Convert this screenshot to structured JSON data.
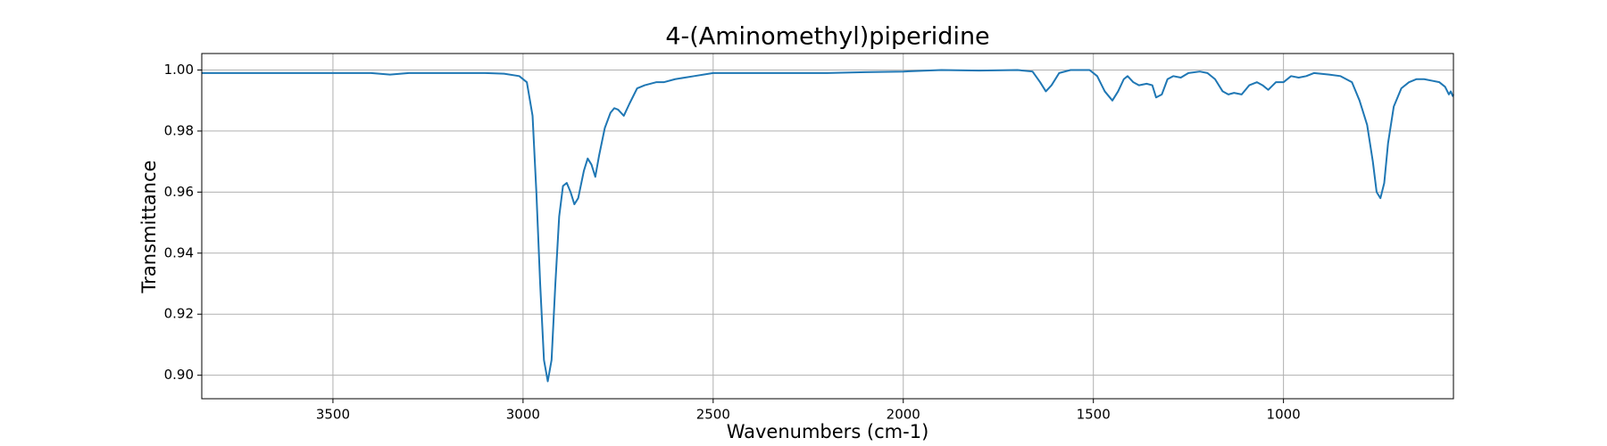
{
  "chart_data": {
    "type": "line",
    "title": "4-(Aminomethyl)piperidine",
    "x_label": "Wavenumbers (cm-1)",
    "y_label": "Transmittance",
    "color": "#1f77b4",
    "grid": true,
    "xlim": [
      3845,
      553
    ],
    "ylim": [
      0.8923,
      1.0054
    ],
    "xticks": [
      3500,
      3000,
      2500,
      2000,
      1500,
      1000
    ],
    "yticks": [
      {
        "value": 0.9,
        "label": "0.90"
      },
      {
        "value": 0.92,
        "label": "0.92"
      },
      {
        "value": 0.94,
        "label": "0.94"
      },
      {
        "value": 0.96,
        "label": "0.96"
      },
      {
        "value": 0.98,
        "label": "0.98"
      },
      {
        "value": 1.0,
        "label": "1.00"
      }
    ],
    "x": [
      3845,
      3700,
      3600,
      3500,
      3400,
      3350,
      3300,
      3200,
      3100,
      3050,
      3010,
      2990,
      2975,
      2965,
      2955,
      2945,
      2935,
      2925,
      2915,
      2905,
      2895,
      2885,
      2875,
      2865,
      2855,
      2840,
      2830,
      2820,
      2810,
      2800,
      2785,
      2770,
      2760,
      2750,
      2735,
      2720,
      2700,
      2680,
      2650,
      2630,
      2600,
      2550,
      2500,
      2400,
      2300,
      2200,
      2100,
      2000,
      1900,
      1800,
      1700,
      1660,
      1640,
      1625,
      1610,
      1590,
      1560,
      1510,
      1490,
      1470,
      1450,
      1435,
      1420,
      1410,
      1395,
      1380,
      1360,
      1345,
      1335,
      1320,
      1305,
      1290,
      1270,
      1250,
      1220,
      1200,
      1180,
      1160,
      1145,
      1130,
      1110,
      1090,
      1070,
      1055,
      1040,
      1020,
      1000,
      980,
      960,
      940,
      920,
      880,
      850,
      820,
      800,
      780,
      765,
      755,
      745,
      735,
      725,
      710,
      690,
      670,
      650,
      630,
      610,
      590,
      575,
      565,
      560,
      555,
      553
    ],
    "values": [
      0.999,
      0.999,
      0.999,
      0.999,
      0.999,
      0.9985,
      0.999,
      0.999,
      0.999,
      0.9988,
      0.998,
      0.996,
      0.985,
      0.96,
      0.93,
      0.905,
      0.898,
      0.905,
      0.93,
      0.952,
      0.962,
      0.963,
      0.96,
      0.956,
      0.958,
      0.967,
      0.971,
      0.969,
      0.965,
      0.972,
      0.981,
      0.986,
      0.9875,
      0.987,
      0.985,
      0.989,
      0.994,
      0.995,
      0.996,
      0.996,
      0.997,
      0.998,
      0.999,
      0.999,
      0.999,
      0.999,
      0.9993,
      0.9995,
      1.0,
      0.9998,
      1.0,
      0.9995,
      0.996,
      0.993,
      0.995,
      0.999,
      1.0,
      1.0,
      0.998,
      0.993,
      0.99,
      0.993,
      0.997,
      0.998,
      0.996,
      0.995,
      0.9955,
      0.995,
      0.991,
      0.992,
      0.997,
      0.998,
      0.9975,
      0.999,
      0.9995,
      0.999,
      0.997,
      0.993,
      0.992,
      0.9925,
      0.992,
      0.995,
      0.996,
      0.995,
      0.9935,
      0.996,
      0.996,
      0.998,
      0.9975,
      0.998,
      0.999,
      0.9985,
      0.998,
      0.996,
      0.99,
      0.982,
      0.97,
      0.96,
      0.958,
      0.963,
      0.976,
      0.988,
      0.994,
      0.996,
      0.997,
      0.997,
      0.9965,
      0.996,
      0.9945,
      0.992,
      0.993,
      0.9915,
      0.992
    ]
  }
}
